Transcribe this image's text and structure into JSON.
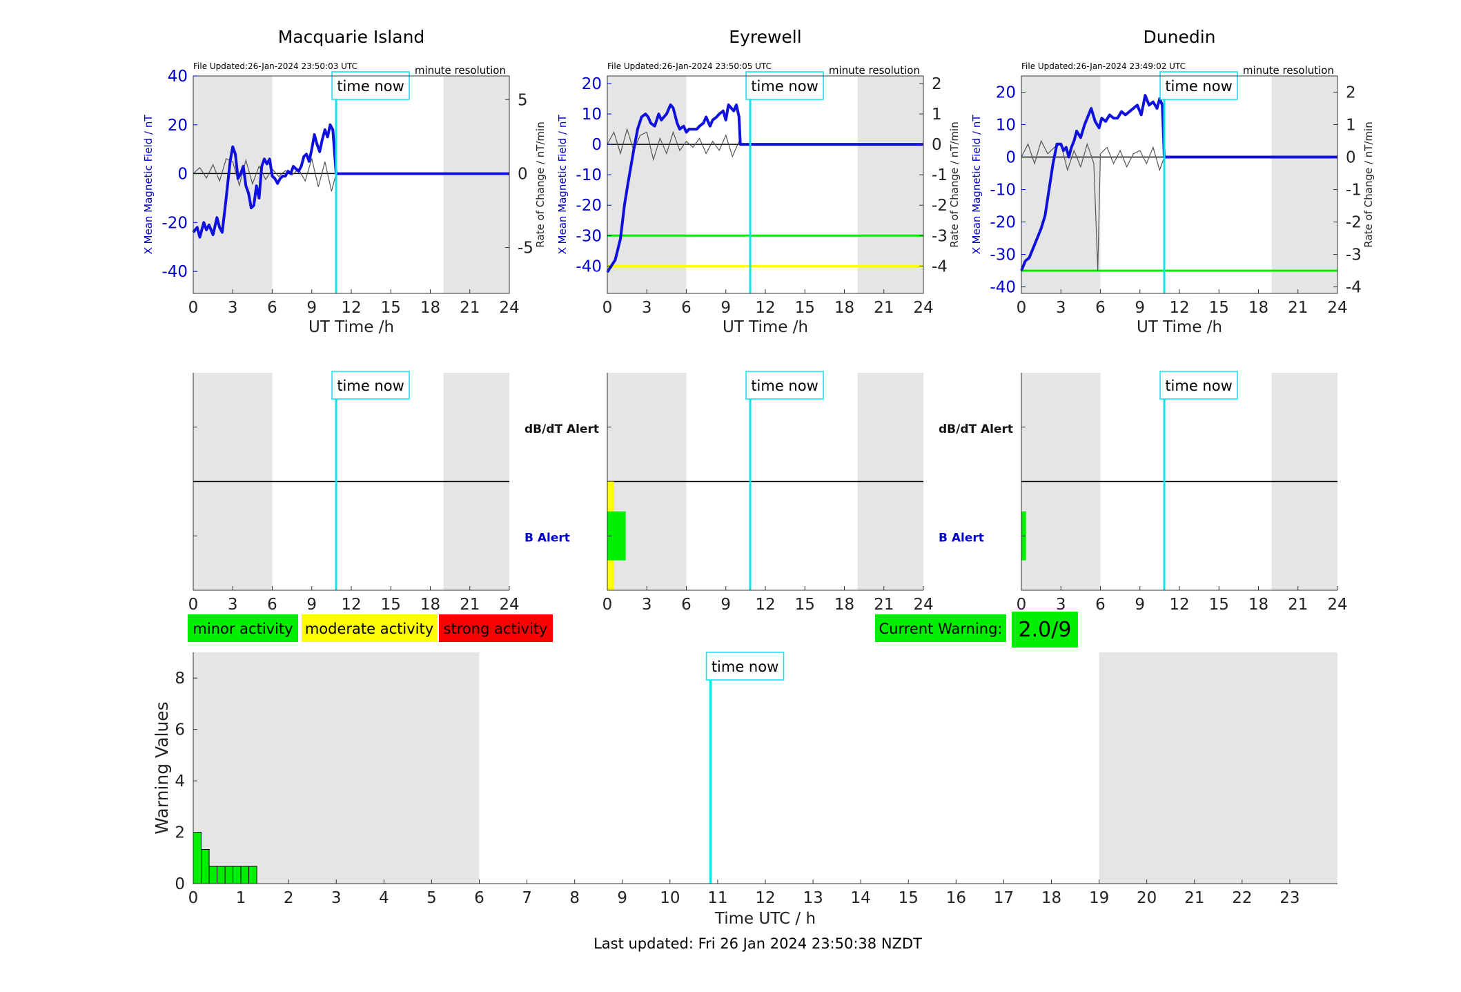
{
  "footer": {
    "last_updated": "Last updated: Fri 26 Jan 2024 23:50:38 NZDT"
  },
  "colors": {
    "field_line": "#1010dd",
    "rate_line": "#555555",
    "time_now": "#00e5ee",
    "night_shade": "#e5e5e5",
    "minor": "#00ee00",
    "moderate": "#ffff00",
    "strong": "#ff0000",
    "axis_blue": "#0000cc"
  },
  "legend": {
    "minor": "minor activity",
    "moderate": "moderate activity",
    "strong": "strong activity"
  },
  "current_warning": {
    "label": "Current Warning:",
    "value": "2.0/9"
  },
  "chart_data": [
    {
      "type": "line",
      "title": "Macquarie Island",
      "file_updated": "File Updated:26-Jan-2024 23:50:03 UTC",
      "resolution": "minute resolution",
      "time_now_label": "time now",
      "time_now": 10.85,
      "shade": [
        [
          0,
          6
        ],
        [
          19,
          24
        ]
      ],
      "xlabel": "UT Time /h",
      "xlim": [
        0,
        24
      ],
      "xticks": [
        0,
        3,
        6,
        9,
        12,
        15,
        18,
        21,
        24
      ],
      "ylabel_left": "X Mean Magnetic Field / nT",
      "ylim_left": [
        -49,
        40
      ],
      "yticks_left": [
        -40,
        -20,
        0,
        20,
        40
      ],
      "ylabel_right": "Rate of Change / nT/min",
      "ylim_right": [
        -8.1,
        6.6
      ],
      "yticks_right": [
        -5,
        0,
        5
      ],
      "thresholds": [],
      "series": [
        {
          "name": "X Mean Magnetic Field",
          "axis": "left",
          "x": [
            0,
            0.3,
            0.5,
            0.8,
            1.0,
            1.2,
            1.5,
            1.8,
            2.0,
            2.2,
            2.5,
            2.8,
            3.0,
            3.2,
            3.4,
            3.6,
            3.8,
            4.0,
            4.2,
            4.4,
            4.6,
            4.8,
            5.0,
            5.2,
            5.4,
            5.6,
            5.8,
            6.0,
            6.2,
            6.4,
            6.6,
            6.8,
            7.0,
            7.2,
            7.4,
            7.6,
            7.8,
            8.0,
            8.2,
            8.4,
            8.6,
            8.8,
            9.0,
            9.2,
            9.4,
            9.6,
            9.8,
            10.0,
            10.2,
            10.4,
            10.6,
            10.85,
            24
          ],
          "y": [
            -24,
            -22,
            -26,
            -20,
            -23,
            -21,
            -25,
            -18,
            -22,
            -24,
            -10,
            5,
            11,
            8,
            -2,
            0,
            3,
            -5,
            -8,
            -14,
            -13,
            -5,
            -10,
            3,
            6,
            4,
            6,
            -1,
            -2,
            -4,
            -2,
            -1,
            -1,
            1,
            0,
            3,
            2,
            1,
            3,
            7,
            8,
            5,
            10,
            16,
            12,
            9,
            14,
            18,
            15,
            20,
            18,
            0,
            0
          ]
        },
        {
          "name": "Rate of Change",
          "axis": "right",
          "x": [
            0,
            0.5,
            1,
            1.5,
            2,
            2.5,
            3,
            3.5,
            4,
            4.5,
            5,
            5.5,
            6,
            6.5,
            7,
            7.5,
            8,
            8.5,
            9,
            9.5,
            10,
            10.5,
            10.85,
            24
          ],
          "y": [
            0,
            0.4,
            -0.3,
            0.6,
            -0.5,
            1.0,
            0.8,
            -0.8,
            0.9,
            -0.7,
            0.5,
            -0.4,
            0.3,
            -0.2,
            0.2,
            -0.1,
            0.3,
            -0.5,
            1.0,
            -0.9,
            0.8,
            -1.2,
            0,
            0
          ]
        }
      ],
      "alert_band_labels": {
        "dbdt": "",
        "b": ""
      },
      "alert_bars": []
    },
    {
      "type": "line",
      "title": "Eyrewell",
      "file_updated": "File Updated:26-Jan-2024 23:50:05 UTC",
      "resolution": "minute resolution",
      "time_now_label": "time now",
      "time_now": 10.85,
      "shade": [
        [
          0,
          6
        ],
        [
          19,
          24
        ]
      ],
      "xlabel": "UT Time /h",
      "xlim": [
        0,
        24
      ],
      "xticks": [
        0,
        3,
        6,
        9,
        12,
        15,
        18,
        21,
        24
      ],
      "ylabel_left": "X Mean Magnetic Field / nT",
      "ylim_left": [
        -49,
        22.5
      ],
      "yticks_left": [
        -40,
        -30,
        -20,
        -10,
        0,
        10,
        20
      ],
      "ylabel_right": "Rate of Change / nT/min",
      "ylim_right": [
        -4.9,
        2.25
      ],
      "yticks_right": [
        -4,
        -3,
        -2,
        -1,
        0,
        1,
        2
      ],
      "thresholds": [
        {
          "value": -30,
          "color": "#00ee00"
        },
        {
          "value": -40,
          "color": "#ffff00"
        }
      ],
      "series": [
        {
          "name": "X Mean Magnetic Field",
          "axis": "left",
          "x": [
            0,
            0.3,
            0.6,
            1.0,
            1.3,
            1.6,
            2.0,
            2.3,
            2.6,
            2.9,
            3.1,
            3.3,
            3.6,
            3.9,
            4.1,
            4.3,
            4.5,
            4.8,
            5.0,
            5.3,
            5.5,
            5.8,
            6.0,
            6.2,
            6.5,
            6.8,
            7.0,
            7.3,
            7.5,
            7.8,
            8.0,
            8.3,
            8.5,
            8.8,
            9.0,
            9.2,
            9.4,
            9.6,
            9.8,
            10.0,
            10.1,
            24
          ],
          "y": [
            -42,
            -40,
            -38,
            -31,
            -20,
            -12,
            -2,
            5,
            9,
            10,
            9,
            7,
            6,
            10,
            8,
            9,
            10,
            13,
            12,
            7,
            5,
            6,
            4,
            5,
            5,
            5,
            6,
            7,
            9,
            6,
            8,
            9,
            10,
            11,
            8,
            13,
            12,
            11,
            13,
            9,
            0,
            0
          ]
        },
        {
          "name": "Rate of Change",
          "axis": "right",
          "x": [
            0,
            0.5,
            1,
            1.5,
            2,
            2.5,
            3,
            3.5,
            4,
            4.5,
            5,
            5.5,
            6,
            6.5,
            7,
            7.5,
            8,
            8.5,
            9,
            9.5,
            10,
            10.1,
            24
          ],
          "y": [
            0,
            0.4,
            -0.3,
            0.5,
            -0.2,
            0.3,
            0.4,
            -0.5,
            0.2,
            -0.3,
            0.4,
            -0.2,
            0.1,
            -0.1,
            0.2,
            -0.3,
            0.1,
            -0.2,
            0.3,
            -0.4,
            0.1,
            0,
            0
          ]
        }
      ],
      "alert_band_labels": {
        "dbdt": "dB/dT Alert",
        "b": "B Alert"
      },
      "alert_bars": [
        {
          "x0": 0,
          "x1": 0.5,
          "y0": -1,
          "y1": 1,
          "color": "#ffff00"
        },
        {
          "x0": 0,
          "x1": 1.4,
          "y0": -0.45,
          "y1": 0.45,
          "color": "#00ee00"
        }
      ]
    },
    {
      "type": "line",
      "title": "Dunedin",
      "file_updated": "File Updated:26-Jan-2024 23:49:02 UTC",
      "resolution": "minute resolution",
      "time_now_label": "time now",
      "time_now": 10.85,
      "shade": [
        [
          0,
          6
        ],
        [
          19,
          24
        ]
      ],
      "xlabel": "UT Time /h",
      "xlim": [
        0,
        24
      ],
      "xticks": [
        0,
        3,
        6,
        9,
        12,
        15,
        18,
        21,
        24
      ],
      "ylabel_left": "X Mean Magnetic Field / nT",
      "ylim_left": [
        -42,
        25
      ],
      "yticks_left": [
        -40,
        -30,
        -20,
        -10,
        0,
        10,
        20
      ],
      "ylabel_right": "Rate of Change / nT/min",
      "ylim_right": [
        -4.2,
        2.5
      ],
      "yticks_right": [
        -4,
        -3,
        -2,
        -1,
        0,
        1,
        2
      ],
      "thresholds": [
        {
          "value": -35,
          "color": "#00ee00"
        }
      ],
      "series": [
        {
          "name": "X Mean Magnetic Field",
          "axis": "left",
          "x": [
            0,
            0.3,
            0.6,
            0.9,
            1.2,
            1.5,
            1.8,
            2.1,
            2.4,
            2.7,
            3.0,
            3.2,
            3.4,
            3.6,
            3.8,
            4.0,
            4.2,
            4.5,
            4.8,
            5.0,
            5.3,
            5.6,
            5.9,
            6.1,
            6.4,
            6.7,
            7.0,
            7.3,
            7.6,
            7.9,
            8.2,
            8.5,
            8.8,
            9.1,
            9.4,
            9.7,
            10.0,
            10.3,
            10.5,
            10.7,
            10.85,
            24
          ],
          "y": [
            -35,
            -32,
            -31,
            -28,
            -25,
            -22,
            -18,
            -10,
            -2,
            4,
            4,
            2,
            3,
            0,
            3,
            5,
            8,
            6,
            10,
            12,
            15,
            11,
            9,
            12,
            11,
            13,
            12,
            12,
            14,
            13,
            14,
            15,
            16,
            13,
            19,
            16,
            17,
            15,
            18,
            16,
            0,
            0
          ]
        },
        {
          "name": "Rate of Change",
          "axis": "right",
          "x": [
            0,
            0.5,
            1,
            1.5,
            2,
            2.5,
            3,
            3.5,
            4,
            4.5,
            5,
            5.5,
            5.8,
            6,
            6.5,
            7,
            7.5,
            8,
            8.5,
            9,
            9.5,
            10,
            10.5,
            10.85,
            24
          ],
          "y": [
            0,
            0.4,
            -0.2,
            0.5,
            0.1,
            0.3,
            0.4,
            -0.4,
            0.2,
            -0.3,
            0.4,
            -0.2,
            -3.5,
            0.1,
            0.3,
            -0.2,
            0.2,
            -0.3,
            0.1,
            0.2,
            -0.2,
            0.3,
            -0.4,
            0,
            0
          ]
        }
      ],
      "alert_band_labels": {
        "dbdt": "dB/dT Alert",
        "b": "B Alert"
      },
      "alert_bars": [
        {
          "x0": 0,
          "x1": 0.35,
          "y0": -0.45,
          "y1": 0.45,
          "color": "#00ee00"
        }
      ]
    },
    {
      "type": "bar",
      "time_now_label": "time now",
      "time_now": 10.85,
      "shade": [
        [
          0,
          6
        ],
        [
          19,
          24
        ]
      ],
      "xlabel": "Time UTC / h",
      "ylabel": "Warning Values",
      "xlim": [
        0,
        24
      ],
      "xticks": [
        0,
        1,
        2,
        3,
        4,
        5,
        6,
        7,
        8,
        9,
        10,
        11,
        12,
        13,
        14,
        15,
        16,
        17,
        18,
        19,
        20,
        21,
        22,
        23
      ],
      "ylim": [
        0,
        9
      ],
      "yticks": [
        0,
        2,
        4,
        6,
        8
      ],
      "bar_width": 0.1667,
      "x": [
        0,
        0.1667,
        0.3333,
        0.5,
        0.6667,
        0.8333,
        1.0,
        1.1667
      ],
      "values": [
        2.0,
        1.33,
        0.67,
        0.67,
        0.67,
        0.67,
        0.67,
        0.67
      ]
    }
  ]
}
